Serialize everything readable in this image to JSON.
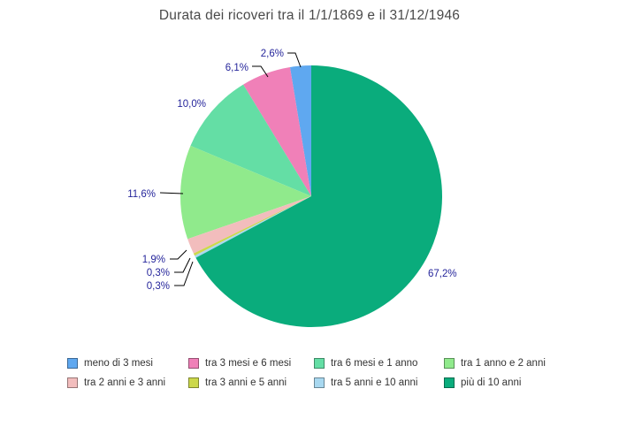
{
  "title": "Durata dei ricoveri tra il 1/1/1869 e il 31/12/1946",
  "chart_data": {
    "type": "pie",
    "title": "Durata dei ricoveri tra il 1/1/1869 e il 31/12/1946",
    "unit": "%",
    "legend_position": "bottom",
    "label_color": "#25259b",
    "background_color": "#ffffff",
    "direction": "counterclockwise",
    "start_angle": "12-o-clock",
    "slices": [
      {
        "label": "meno di 3 mesi",
        "value": 2.6,
        "value_label": "2,6%",
        "color": "#5fa8f0"
      },
      {
        "label": "tra 3 mesi e 6 mesi",
        "value": 6.1,
        "value_label": "6,1%",
        "color": "#f080b8"
      },
      {
        "label": "tra 6 mesi e 1 anno",
        "value": 10.0,
        "value_label": "10,0%",
        "color": "#64dea5"
      },
      {
        "label": "tra 1 anno e 2 anni",
        "value": 11.6,
        "value_label": "11,6%",
        "color": "#90ea8c"
      },
      {
        "label": "tra 2 anni e 3 anni",
        "value": 1.9,
        "value_label": "1,9%",
        "color": "#f2bdbd"
      },
      {
        "label": "tra 3 anni e 5 anni",
        "value": 0.3,
        "value_label": "0,3%",
        "color": "#ccd84a"
      },
      {
        "label": "tra 5 anni e 10 anni",
        "value": 0.3,
        "value_label": "0,3%",
        "color": "#a8d8f0"
      },
      {
        "label": "più di 10 anni",
        "value": 67.2,
        "value_label": "67,2%",
        "color": "#0aac7c"
      }
    ]
  }
}
